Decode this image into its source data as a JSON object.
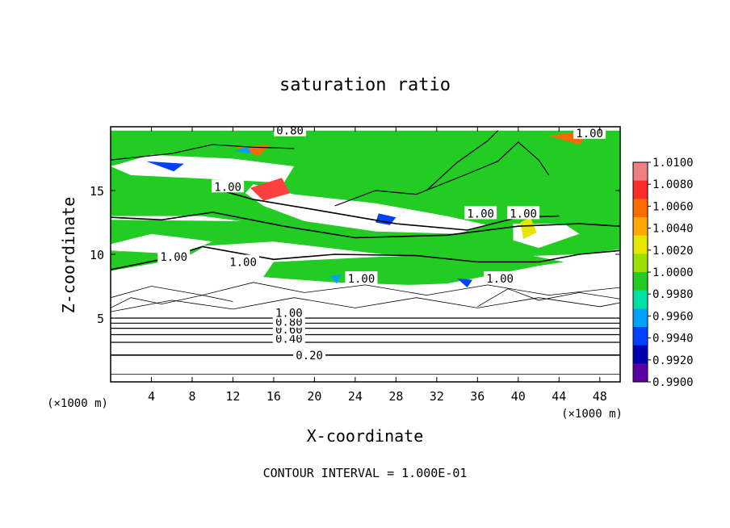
{
  "chart_data": {
    "type": "heatmap",
    "title": "saturation ratio",
    "xlabel": "X-coordinate",
    "ylabel": "Z-coordinate",
    "x_unit_note": "(×1000 m)",
    "y_unit_note": "(×1000 m)",
    "footer": "CONTOUR INTERVAL = 1.000E-01",
    "xlim": [
      0,
      50
    ],
    "ylim": [
      0,
      20
    ],
    "x_ticks": [
      4,
      8,
      12,
      16,
      20,
      24,
      28,
      32,
      36,
      40,
      44,
      48
    ],
    "y_ticks": [
      5,
      10,
      15
    ],
    "colorbar": {
      "ticks": [
        "1.0100",
        "1.0080",
        "1.0060",
        "1.0040",
        "1.0020",
        "1.0000",
        "0.9980",
        "0.9960",
        "0.9940",
        "0.9920",
        "0.9900"
      ],
      "colors": [
        "#f08080",
        "#ff2a2a",
        "#ff6a00",
        "#ffa800",
        "#e6e600",
        "#9be000",
        "#22cc22",
        "#00e0a0",
        "#00a0ff",
        "#0040ff",
        "#0000b0",
        "#5a00a0"
      ]
    },
    "contour_labels": [
      {
        "text": "0.20",
        "x": 19.5,
        "z": 2.1
      },
      {
        "text": "0.40",
        "x": 17.5,
        "z": 3.4
      },
      {
        "text": "0.60",
        "x": 17.5,
        "z": 4.1
      },
      {
        "text": "0.80",
        "x": 17.5,
        "z": 4.7
      },
      {
        "text": "1.00",
        "x": 17.5,
        "z": 5.4
      },
      {
        "text": "1.00",
        "x": 11.5,
        "z": 15.3
      },
      {
        "text": "1.00",
        "x": 6.2,
        "z": 9.8
      },
      {
        "text": "1.00",
        "x": 13,
        "z": 9.4
      },
      {
        "text": "1.00",
        "x": 24.6,
        "z": 8.1
      },
      {
        "text": "1.00",
        "x": 38.2,
        "z": 8.1
      },
      {
        "text": "1.00",
        "x": 36.3,
        "z": 13.2
      },
      {
        "text": "1.00",
        "x": 40.5,
        "z": 13.2
      },
      {
        "text": "1.00",
        "x": 47,
        "z": 19.5
      },
      {
        "text": "0.80",
        "x": 17.6,
        "z": 19.7
      }
    ],
    "color_fields": [
      {
        "fill": "#22cc22",
        "pts": [
          [
            0,
            13
          ],
          [
            9,
            13
          ],
          [
            22,
            11.6
          ],
          [
            35,
            12
          ],
          [
            50,
            12.2
          ],
          [
            50,
            19.7
          ],
          [
            0,
            19.7
          ]
        ]
      },
      {
        "fill": "#22cc22",
        "pts": [
          [
            0,
            10.2
          ],
          [
            16,
            11
          ],
          [
            31,
            9.6
          ],
          [
            46,
            10
          ],
          [
            50,
            10.4
          ],
          [
            50,
            12.3
          ],
          [
            0,
            12.7
          ]
        ]
      },
      {
        "fill": "#22cc22",
        "pts": [
          [
            13.5,
            6.5
          ],
          [
            22,
            7.4
          ],
          [
            33,
            7.7
          ],
          [
            42,
            9.1
          ],
          [
            44.5,
            9.4
          ],
          [
            40,
            10.1
          ],
          [
            26,
            9.8
          ],
          [
            16,
            9.4
          ]
        ]
      },
      {
        "fill": "#22cc22",
        "pts": [
          [
            0,
            8.6
          ],
          [
            7,
            9.6
          ],
          [
            9,
            10.5
          ],
          [
            0,
            10.2
          ]
        ]
      },
      {
        "fill": "#ffffff",
        "pts": [
          [
            0,
            16.9
          ],
          [
            4,
            17.8
          ],
          [
            12,
            17.5
          ],
          [
            18,
            16.9
          ],
          [
            17,
            15.6
          ],
          [
            10,
            15.9
          ],
          [
            2,
            16.2
          ]
        ]
      },
      {
        "fill": "#ffffff",
        "pts": [
          [
            14,
            15.5
          ],
          [
            18,
            14.7
          ],
          [
            26,
            14
          ],
          [
            33,
            13
          ],
          [
            37,
            12.3
          ],
          [
            34,
            11.6
          ],
          [
            26,
            11.8
          ],
          [
            19,
            12.6
          ],
          [
            15,
            13.8
          ],
          [
            13.2,
            14.8
          ]
        ]
      },
      {
        "fill": "#ffffff",
        "pts": [
          [
            39.5,
            12.4
          ],
          [
            44.5,
            12.4
          ],
          [
            46,
            11.6
          ],
          [
            42,
            10.5
          ],
          [
            39.5,
            11.1
          ]
        ]
      },
      {
        "fill": "#ffffff",
        "pts": [
          [
            0,
            0
          ],
          [
            50,
            0
          ],
          [
            50,
            9
          ],
          [
            42,
            9.1
          ],
          [
            33,
            7.5
          ],
          [
            22,
            7.8
          ],
          [
            12,
            8.4
          ],
          [
            5,
            9.4
          ],
          [
            0,
            8.7
          ]
        ]
      },
      {
        "fill": "#ffffff",
        "pts": [
          [
            15,
            6.3
          ],
          [
            18,
            6.4
          ],
          [
            16,
            7.3
          ]
        ]
      },
      {
        "fill": "#ffffff",
        "pts": [
          [
            0,
            10.8
          ],
          [
            4,
            11.6
          ],
          [
            10,
            11
          ],
          [
            7,
            10
          ],
          [
            0,
            10.3
          ]
        ]
      },
      {
        "fill": "#ff4040",
        "pts": [
          [
            13.7,
            15.2
          ],
          [
            16.8,
            16
          ],
          [
            17.6,
            14.8
          ],
          [
            15,
            14.2
          ]
        ]
      },
      {
        "fill": "#ff6a00",
        "pts": [
          [
            12.3,
            18.4
          ],
          [
            15.6,
            18.6
          ],
          [
            14.5,
            17.7
          ]
        ]
      },
      {
        "fill": "#ff6a00",
        "pts": [
          [
            43,
            19.3
          ],
          [
            47,
            19.7
          ],
          [
            46,
            18.6
          ]
        ]
      },
      {
        "fill": "#e6e600",
        "pts": [
          [
            40.2,
            12.5
          ],
          [
            41.2,
            12.9
          ],
          [
            41.8,
            11.7
          ],
          [
            40.5,
            11.2
          ]
        ]
      },
      {
        "fill": "#0040ff",
        "pts": [
          [
            3.5,
            17.3
          ],
          [
            7.2,
            17.1
          ],
          [
            6.2,
            16.5
          ]
        ]
      },
      {
        "fill": "#0040ff",
        "pts": [
          [
            26.3,
            13.2
          ],
          [
            28,
            12.9
          ],
          [
            27.4,
            12.3
          ],
          [
            26,
            12.5
          ]
        ]
      },
      {
        "fill": "#0040ff",
        "pts": [
          [
            34,
            8.1
          ],
          [
            35.5,
            8
          ],
          [
            35,
            7.4
          ]
        ]
      },
      {
        "fill": "#00a0ff",
        "pts": [
          [
            21.5,
            8.3
          ],
          [
            22.6,
            8.4
          ],
          [
            22.2,
            7.7
          ]
        ]
      },
      {
        "fill": "#00a0ff",
        "pts": [
          [
            12.2,
            18.1
          ],
          [
            13.4,
            18.5
          ],
          [
            13.8,
            17.9
          ]
        ]
      }
    ],
    "contours": [
      {
        "w": 1.6,
        "pts": [
          [
            0,
            2.1
          ],
          [
            50,
            2.1
          ]
        ]
      },
      {
        "w": 1.2,
        "pts": [
          [
            0,
            3.1
          ],
          [
            50,
            3.1
          ]
        ]
      },
      {
        "w": 1.2,
        "pts": [
          [
            0,
            3.7
          ],
          [
            50,
            3.7
          ]
        ]
      },
      {
        "w": 1.2,
        "pts": [
          [
            0,
            4.2
          ],
          [
            50,
            4.2
          ]
        ]
      },
      {
        "w": 1.2,
        "pts": [
          [
            0,
            4.6
          ],
          [
            50,
            4.6
          ]
        ]
      },
      {
        "w": 1.2,
        "pts": [
          [
            0,
            5.0
          ],
          [
            50,
            5.0
          ]
        ]
      },
      {
        "w": 0.8,
        "pts": [
          [
            0,
            0.6
          ],
          [
            50,
            0.6
          ]
        ]
      },
      {
        "w": 0.8,
        "pts": [
          [
            0,
            5.5
          ],
          [
            6,
            6.4
          ],
          [
            12,
            5.7
          ],
          [
            18,
            6.6
          ],
          [
            24,
            5.8
          ],
          [
            30,
            6.6
          ],
          [
            36,
            5.8
          ],
          [
            42,
            6.6
          ],
          [
            48,
            5.9
          ],
          [
            50,
            6.2
          ]
        ]
      },
      {
        "w": 0.8,
        "pts": [
          [
            0,
            6.6
          ],
          [
            4,
            7.5
          ],
          [
            9,
            6.8
          ],
          [
            14,
            7.8
          ],
          [
            19,
            7
          ],
          [
            25,
            7.6
          ],
          [
            31,
            6.8
          ],
          [
            37,
            7.6
          ],
          [
            43,
            6.8
          ],
          [
            50,
            7.4
          ]
        ]
      },
      {
        "w": 1.6,
        "pts": [
          [
            0,
            8.8
          ],
          [
            5,
            9.6
          ],
          [
            9,
            10.6
          ],
          [
            16,
            9.6
          ],
          [
            22,
            10
          ],
          [
            30,
            9.9
          ],
          [
            36,
            9.4
          ],
          [
            42,
            9.4
          ],
          [
            46,
            10
          ],
          [
            50,
            10.3
          ]
        ]
      },
      {
        "w": 1.6,
        "pts": [
          [
            0,
            12.9
          ],
          [
            5,
            12.7
          ],
          [
            10,
            13.3
          ],
          [
            17,
            12.2
          ],
          [
            24,
            11.3
          ],
          [
            33,
            11.5
          ],
          [
            40,
            12.2
          ],
          [
            46,
            12.4
          ],
          [
            50,
            12.2
          ]
        ]
      },
      {
        "w": 1.6,
        "pts": [
          [
            10,
            15.2
          ],
          [
            14,
            14.3
          ],
          [
            20,
            13.5
          ],
          [
            28,
            12.4
          ],
          [
            35,
            11.9
          ],
          [
            40,
            12.9
          ],
          [
            44,
            13
          ]
        ]
      },
      {
        "w": 1.2,
        "pts": [
          [
            22,
            13.8
          ],
          [
            26,
            15
          ],
          [
            30,
            14.7
          ],
          [
            35,
            16.3
          ],
          [
            38,
            17.3
          ],
          [
            40,
            18.8
          ],
          [
            42,
            17.4
          ],
          [
            43,
            16.2
          ]
        ]
      },
      {
        "w": 1.2,
        "pts": [
          [
            0,
            17.4
          ],
          [
            6,
            17.9
          ],
          [
            10,
            18.6
          ],
          [
            14,
            18.4
          ],
          [
            18,
            18.3
          ]
        ]
      },
      {
        "w": 1.2,
        "pts": [
          [
            31,
            15
          ],
          [
            34,
            17.2
          ],
          [
            37,
            18.9
          ],
          [
            38,
            19.7
          ]
        ]
      },
      {
        "w": 0.8,
        "pts": [
          [
            0,
            5.8
          ],
          [
            2,
            6.6
          ],
          [
            5,
            6.1
          ],
          [
            9,
            6.8
          ],
          [
            12,
            6.3
          ]
        ]
      },
      {
        "w": 0.8,
        "pts": [
          [
            36,
            5.9
          ],
          [
            39,
            7.3
          ],
          [
            42,
            6.4
          ],
          [
            46,
            7
          ],
          [
            50,
            6.5
          ]
        ]
      }
    ]
  }
}
